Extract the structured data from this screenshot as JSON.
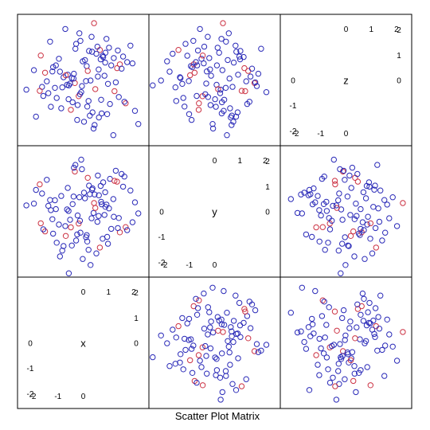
{
  "chart_data": {
    "type": "scatter",
    "title": "Scatter Plot Matrix",
    "variables": [
      "x",
      "y",
      "z"
    ],
    "axis_range": [
      -2.6,
      2.6
    ],
    "ticks": [
      -2,
      -1,
      0,
      1,
      2
    ],
    "tick_labels": [
      "-2",
      "-1",
      "0",
      "1",
      "2"
    ],
    "colors": {
      "blue": "#2a2ab8",
      "red": "#cc3344",
      "frame": "#000000"
    },
    "points": {
      "x": [
        0.61,
        -1.12,
        0.23,
        1.68,
        -0.45,
        0.92,
        -1.87,
        0.14,
        -0.33,
        1.21,
        0.45,
        -0.92,
        1.02,
        -0.18,
        -1.44,
        0.77,
        2.05,
        -0.61,
        0.33,
        -0.08,
        1.45,
        -1.28,
        0.58,
        -0.71,
        0.21,
        -1.63,
        0.88,
        -0.24,
        1.34,
        -0.52,
        0.07,
        -1.05,
        1.87,
        0.41,
        -0.37,
        1.11,
        -2.25,
        0.66,
        -0.87,
        0.29,
        1.58,
        -0.13,
        -1.31,
        0.95,
        0.18,
        -0.64,
        1.74,
        -0.42,
        0.52,
        -1.72,
        0.84,
        0.03,
        -0.96,
        1.29,
        -0.28,
        0.71,
        -1.51,
        0.37,
        1.95,
        -0.57,
        -0.15,
        1.06,
        -1.19,
        0.48,
        -0.78,
        0.62,
        -0.31,
        1.41,
        -1.95,
        0.11,
        0.79,
        -0.49,
        1.19,
        -0.02,
        -1.38,
        0.56,
        1.63,
        -0.69,
        0.26,
        -1.08,
        0.98,
        0.35,
        -0.22,
        1.52,
        -1.58,
        0.43,
        -0.83,
        0.69,
        2.18,
        -0.38,
        -0.11,
        1.24,
        -1.22,
        0.16,
        0.87,
        -0.58,
        1.37,
        -0.05,
        -1.68,
        0.73
      ],
      "y": [
        -0.18,
        0.44,
        1.02,
        -0.62,
        -1.35,
        0.27,
        0.85,
        -0.94,
        1.58,
        -0.21,
        0.67,
        -1.78,
        0.12,
        -0.48,
        1.25,
        -1.08,
        0.36,
        0.93,
        -0.27,
        2.05,
        -0.83,
        0.05,
        1.42,
        -0.58,
        -1.52,
        0.71,
        0.18,
        -0.91,
        1.18,
        -0.33,
        0.52,
        -1.24,
        0.83,
        -0.06,
        1.73,
        -0.69,
        0.24,
        -1.43,
        0.61,
        -2.12,
        0.98,
        -0.37,
        0.45,
        -1.01,
        1.33,
        0.08,
        -0.74,
        0.29,
        -1.66,
        1.07,
        -0.14,
        0.74,
        -0.52,
        1.61,
        -1.15,
        0.38,
        -0.79,
        0.91,
        -0.43,
        -2.45,
        0.56,
        1.29,
        -0.88,
        0.14,
        -1.37,
        0.64,
        1.84,
        -0.26,
        0.31,
        -1.02,
        1.15,
        -0.63,
        0.49,
        -1.88,
        0.22,
        -0.41,
        1.38,
        -0.97,
        0.68,
        0.09,
        -1.28,
        0.86,
        -0.16,
        1.48,
        -0.71,
        0.33,
        -1.55,
        1.01,
        -0.08,
        0.59,
        -0.84,
        1.21,
        -0.31,
        -1.19,
        0.76,
        0.02,
        -0.66,
        1.67,
        -0.47,
        0.28
      ],
      "z": [
        0.42,
        -0.31,
        1.15,
        -0.92,
        0.08,
        1.63,
        -1.45,
        0.55,
        -0.12,
        0.87,
        -1.78,
        0.33,
        1.28,
        -0.64,
        -0.05,
        0.96,
        -1.22,
        0.21,
        1.71,
        -0.48,
        0.62,
        -1.06,
        0.14,
        2.02,
        -0.83,
        -0.27,
        1.08,
        -1.58,
        0.47,
        -0.14,
        0.79,
        -0.71,
        1.36,
        -1.92,
        0.25,
        0.58,
        -0.38,
        1.19,
        -1.12,
        -0.02,
        0.93,
        -0.56,
        1.52,
        -1.35,
        0.36,
        -0.19,
        0.71,
        -0.88,
        1.04,
        -0.43,
        0.17,
        -1.65,
        0.84,
        -0.09,
        1.43,
        -0.78,
        0.29,
        -1.28,
        0.66,
        -0.21,
        1.85,
        -0.95,
        0.51,
        -0.36,
        0.11,
        -1.48,
        1.24,
        -0.67,
        0.39,
        -0.04,
        0.91,
        -1.18,
        -2.18,
        0.74,
        -0.52,
        1.32,
        -0.86,
        0.19,
        -1.41,
        0.58,
        -0.15,
        1.12,
        -0.99,
        0.45,
        -0.63,
        2.25,
        -0.29,
        0.82,
        -1.74,
        0.06,
        1.55,
        -0.44,
        0.34,
        -1.05,
        0.69,
        -0.76,
        1.17,
        -0.24,
        0.97,
        -1.32
      ],
      "group": [
        "b",
        "b",
        "b",
        "r",
        "b",
        "b",
        "b",
        "b",
        "r",
        "b",
        "b",
        "b",
        "b",
        "r",
        "b",
        "b",
        "b",
        "b",
        "b",
        "b",
        "r",
        "b",
        "b",
        "b",
        "b",
        "b",
        "b",
        "b",
        "r",
        "b",
        "b",
        "b",
        "b",
        "b",
        "b",
        "b",
        "b",
        "r",
        "b",
        "b",
        "b",
        "b",
        "b",
        "b",
        "r",
        "b",
        "b",
        "b",
        "b",
        "r",
        "b",
        "b",
        "b",
        "b",
        "b",
        "b",
        "r",
        "b",
        "b",
        "b",
        "b",
        "b",
        "b",
        "r",
        "b",
        "b",
        "b",
        "b",
        "b",
        "b",
        "b",
        "r",
        "b",
        "b",
        "b",
        "b",
        "b",
        "r",
        "b",
        "b",
        "b",
        "b",
        "b",
        "b",
        "b",
        "r",
        "b",
        "b",
        "b",
        "b",
        "b",
        "r",
        "b",
        "b",
        "b",
        "b",
        "b",
        "b",
        "r",
        "b"
      ]
    }
  }
}
